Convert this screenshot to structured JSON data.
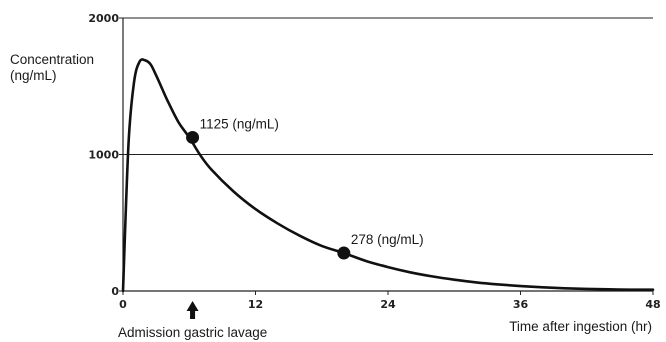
{
  "chart_data": {
    "type": "line",
    "ylabel_lines": [
      "Concentration",
      "(ng/mL)"
    ],
    "xlabel": "Time after ingestion (hr)",
    "xlim": [
      0,
      48
    ],
    "ylim": [
      0,
      2000
    ],
    "x_ticks": [
      0,
      12,
      24,
      36,
      48
    ],
    "y_ticks": [
      0,
      1000,
      2000
    ],
    "x_tick_labels": [
      "0",
      "12",
      "24",
      "36",
      "48"
    ],
    "y_tick_labels": [
      "0",
      "1000",
      "2000"
    ],
    "grid_y": [
      1000,
      2000
    ],
    "series": [
      {
        "x": [
          0,
          0.5,
          1,
          1.5,
          2,
          2.5,
          3,
          3.5,
          4,
          5,
          6,
          7,
          8,
          10,
          12,
          14,
          16,
          18,
          20,
          22,
          24,
          26,
          28,
          30,
          32,
          34,
          36,
          38,
          40,
          42,
          44,
          46,
          48
        ],
        "y": [
          0,
          1080,
          1530,
          1680,
          1690,
          1660,
          1580,
          1490,
          1400,
          1240,
          1125,
          995,
          890,
          730,
          600,
          495,
          405,
          330,
          278,
          220,
          175,
          137,
          107,
          83,
          63,
          48,
          36,
          27,
          20,
          15,
          12,
          10,
          10
        ]
      }
    ],
    "markers": [
      {
        "x": 6.3,
        "y": 1125,
        "label": "1125 (ng/mL)"
      },
      {
        "x": 20,
        "y": 278,
        "label": "278 (ng/mL)"
      }
    ],
    "arrow_event": {
      "x": 6.3,
      "label": "Admission gastric lavage"
    }
  }
}
